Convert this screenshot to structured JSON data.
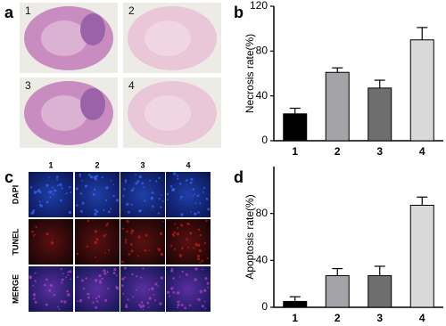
{
  "panels": {
    "labels": [
      "a",
      "b",
      "c",
      "d"
    ],
    "he_labels": [
      "1",
      "2",
      "3",
      "4"
    ],
    "if_columns": [
      "1",
      "2",
      "3",
      "4"
    ],
    "if_rows": [
      "DAPI",
      "TUNEL",
      "MERGE"
    ]
  },
  "chart_data": [
    {
      "type": "bar",
      "y_label": "Necrosis rate(%)",
      "categories": [
        "1",
        "2",
        "3",
        "4"
      ],
      "values": [
        24,
        61,
        47,
        90
      ],
      "errors": [
        5,
        4,
        7,
        11
      ],
      "colors": [
        "#000000",
        "#a3a3a8",
        "#6e6e6e",
        "#d9d9d9"
      ],
      "ylim": [
        0,
        120
      ],
      "yticks": [
        0,
        40,
        80,
        120
      ]
    },
    {
      "type": "bar",
      "y_label": "Apoptosis rate(%)",
      "categories": [
        "1",
        "2",
        "3",
        "4"
      ],
      "values": [
        5,
        27,
        27,
        87
      ],
      "errors": [
        4,
        6,
        8,
        7
      ],
      "colors": [
        "#000000",
        "#a3a3a8",
        "#6e6e6e",
        "#d9d9d9"
      ],
      "ylim": [
        0,
        120
      ],
      "yticks": [
        0,
        40,
        80
      ]
    }
  ]
}
